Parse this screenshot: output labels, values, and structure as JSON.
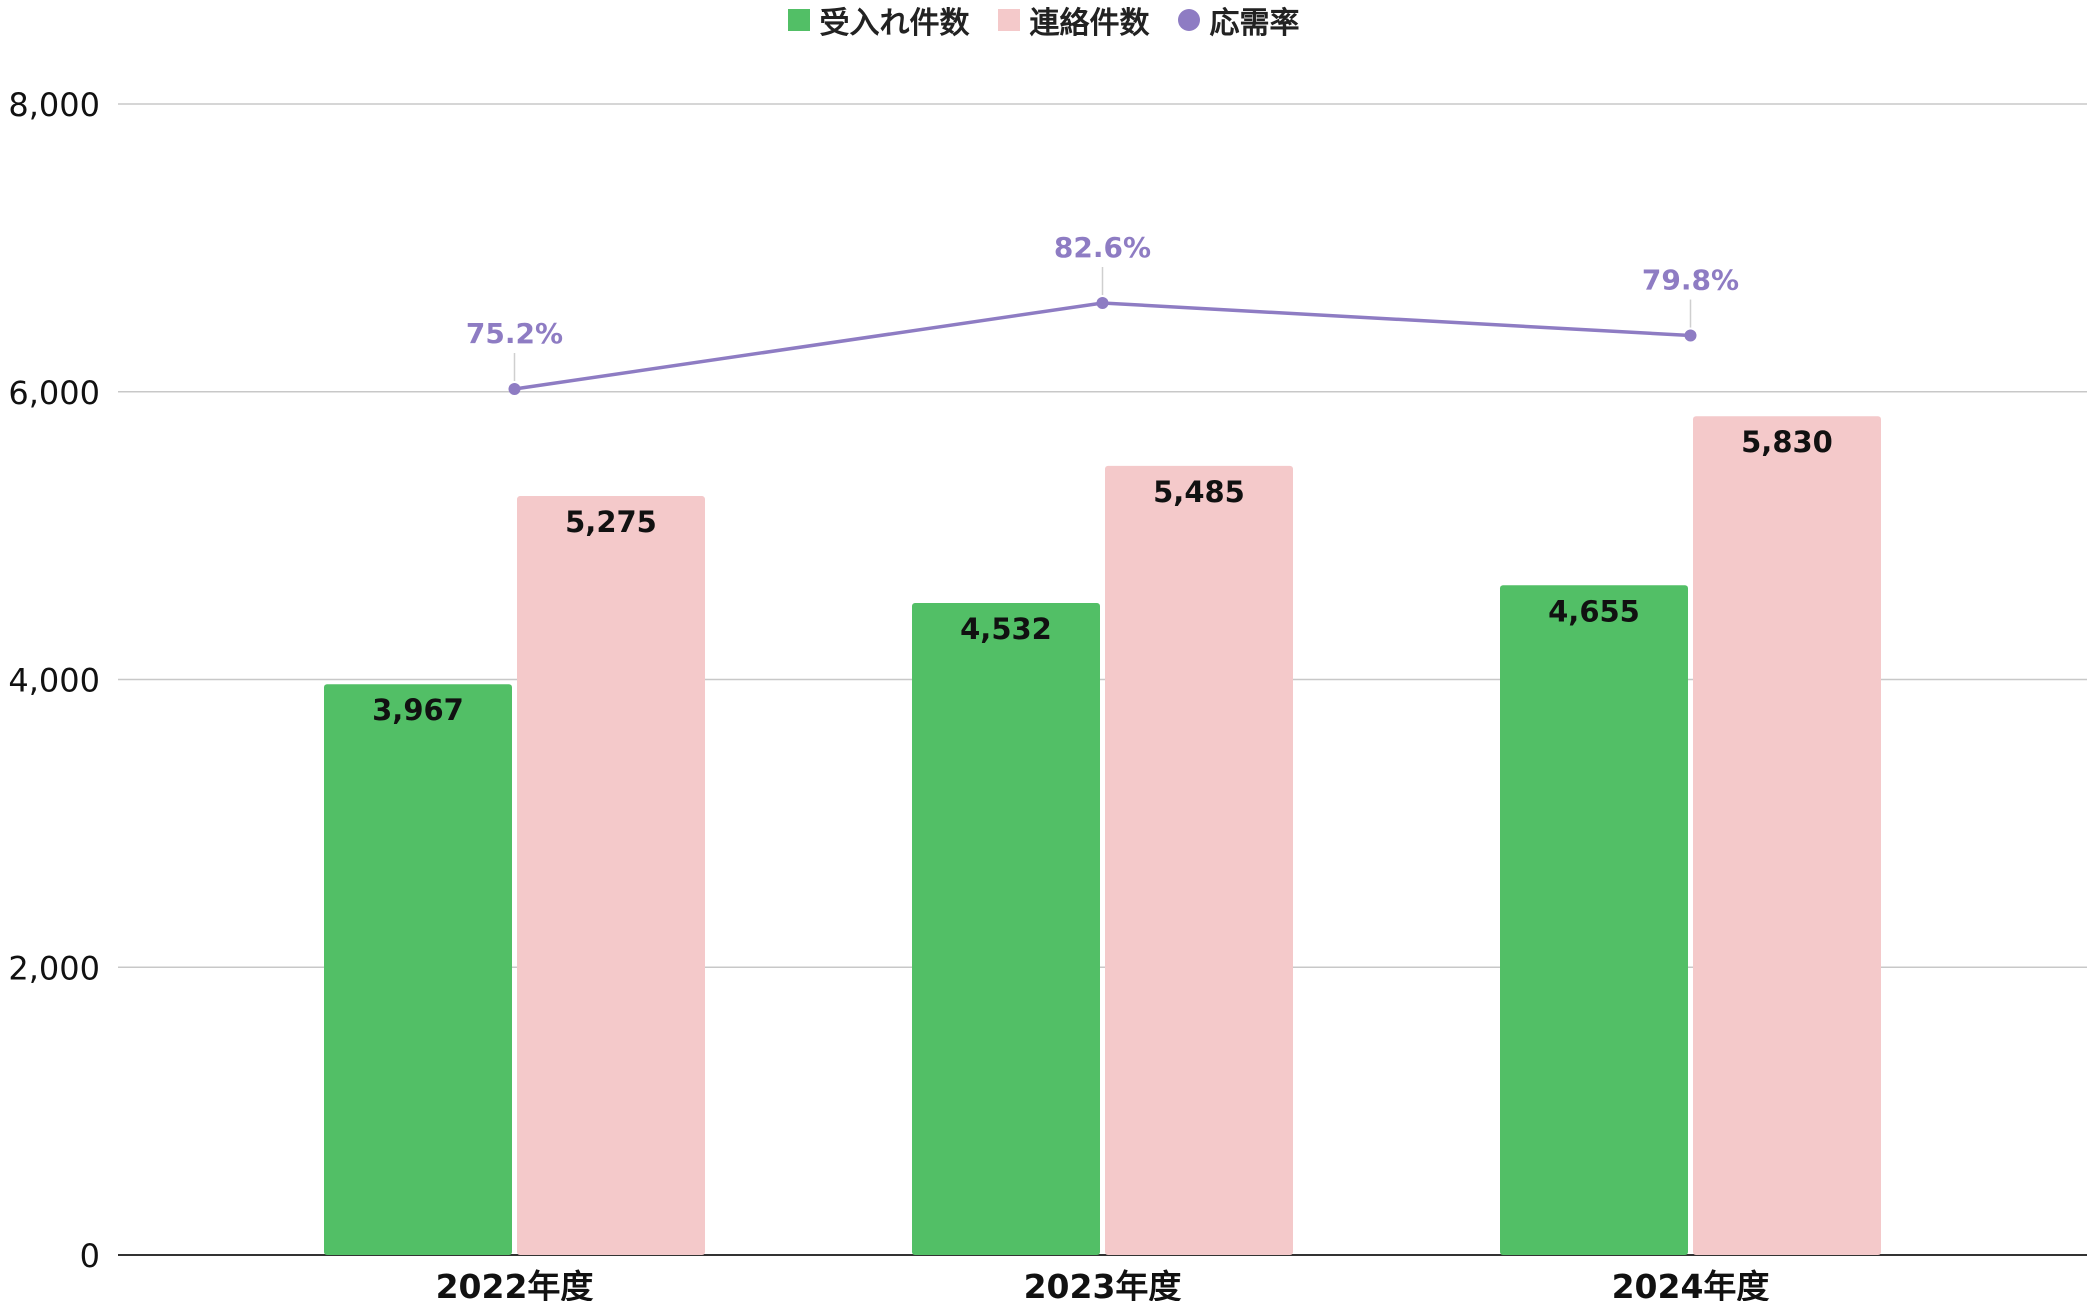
{
  "chart_data": {
    "type": "bar",
    "categories": [
      "2022年度",
      "2023年度",
      "2024年度"
    ],
    "series": [
      {
        "name": "受入れ件数",
        "type": "bar",
        "color": "#52bf66",
        "values": [
          3967,
          4532,
          4655
        ],
        "labels": [
          "3,967",
          "4,532",
          "4,655"
        ]
      },
      {
        "name": "連絡件数",
        "type": "bar",
        "color": "#f4c9ca",
        "values": [
          5275,
          5485,
          5830
        ],
        "labels": [
          "5,275",
          "5,485",
          "5,830"
        ]
      },
      {
        "name": "応需率",
        "type": "line",
        "color": "#8e7cc3",
        "values": [
          75.2,
          82.6,
          79.8
        ],
        "labels": [
          "75.2%",
          "82.6%",
          "79.8%"
        ]
      }
    ],
    "y_axis": {
      "min": 0,
      "max": 8000,
      "ticks": [
        0,
        2000,
        4000,
        6000,
        8000
      ],
      "tick_labels": [
        "0",
        "2,000",
        "4,000",
        "6,000",
        "8,000"
      ]
    },
    "grid": true,
    "legend": "top-center"
  }
}
